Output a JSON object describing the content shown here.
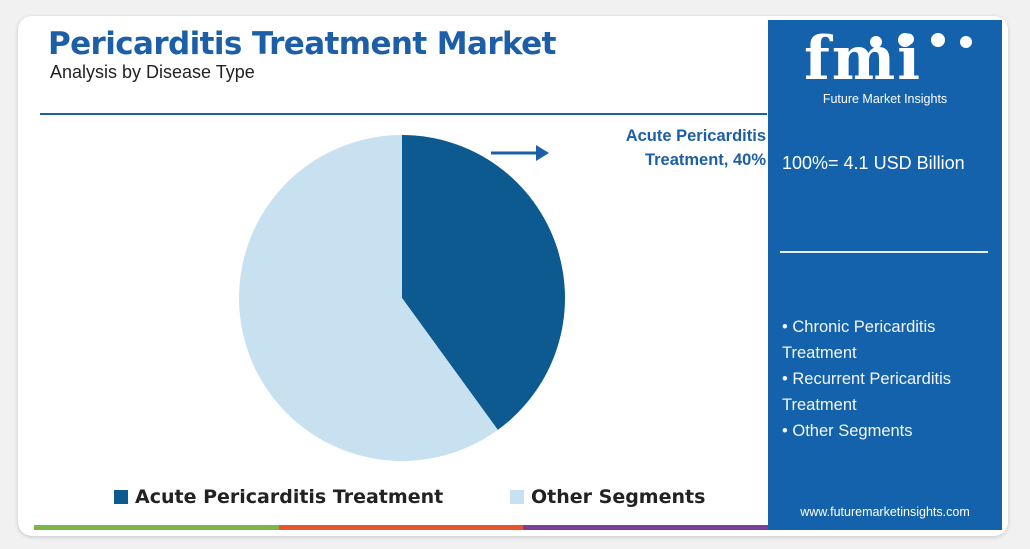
{
  "header": {
    "title": "Pericarditis Treatment Market",
    "subtitle": "Analysis by Disease Type"
  },
  "chart_data": {
    "type": "pie",
    "categories": [
      "Acute Pericarditis Treatment",
      "Other Segments"
    ],
    "values": [
      40,
      60
    ],
    "colors": [
      "#0d5a91",
      "#c7e1f1"
    ],
    "annotations": [
      "Acute Pericarditis",
      "Treatment, 40%"
    ],
    "legend": [
      "Acute Pericarditis Treatment",
      "Other Segments"
    ],
    "legend_position": "bottom"
  },
  "sidebar": {
    "logo": "fmi",
    "logo_sub": "Future Market Insights",
    "total": "100%= 4.1 USD Billion",
    "segments": [
      "• Chronic Pericarditis Treatment",
      "• Recurrent Pericarditis Treatment",
      "• Other Segments"
    ],
    "website": "www.futuremarketinsights.com"
  },
  "bottom_bar_colors": [
    "#7ab648",
    "#e8542c",
    "#7b3f98"
  ]
}
